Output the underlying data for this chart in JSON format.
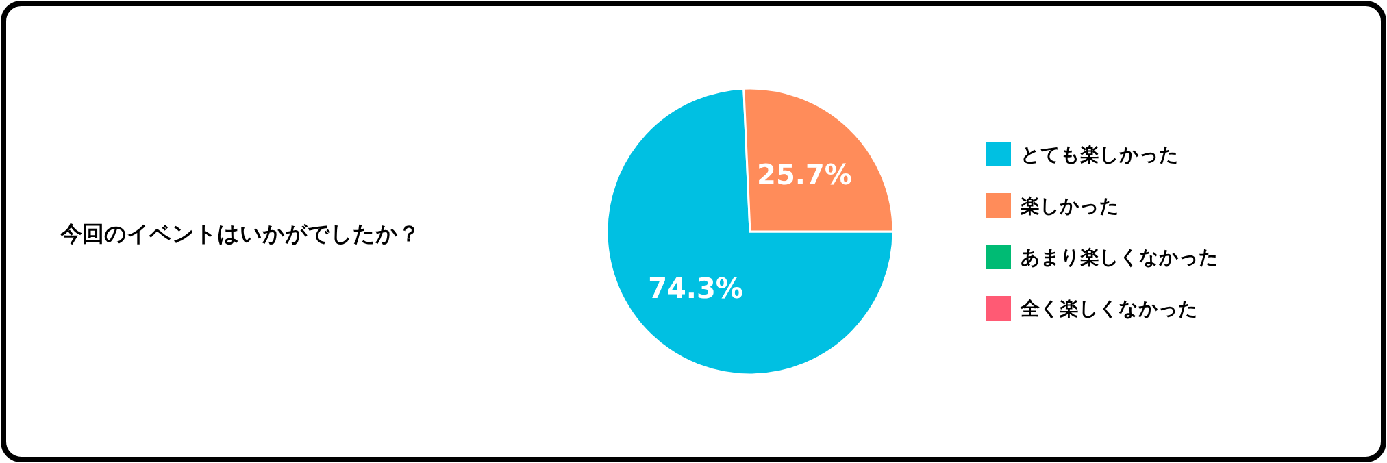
{
  "chart_data": {
    "type": "pie",
    "title": "今回のイベントはいかがでしたか？",
    "categories": [
      "とても楽しかった",
      "楽しかった",
      "あまり楽しくなかった",
      "全く楽しくなかった"
    ],
    "values": [
      74.3,
      25.7,
      0,
      0
    ],
    "colors": [
      "#00c0e2",
      "#ff8c5a",
      "#00bb74",
      "#ff5a74"
    ],
    "value_labels": [
      "74.3%",
      "25.7%",
      null,
      null
    ],
    "legend": "right"
  }
}
